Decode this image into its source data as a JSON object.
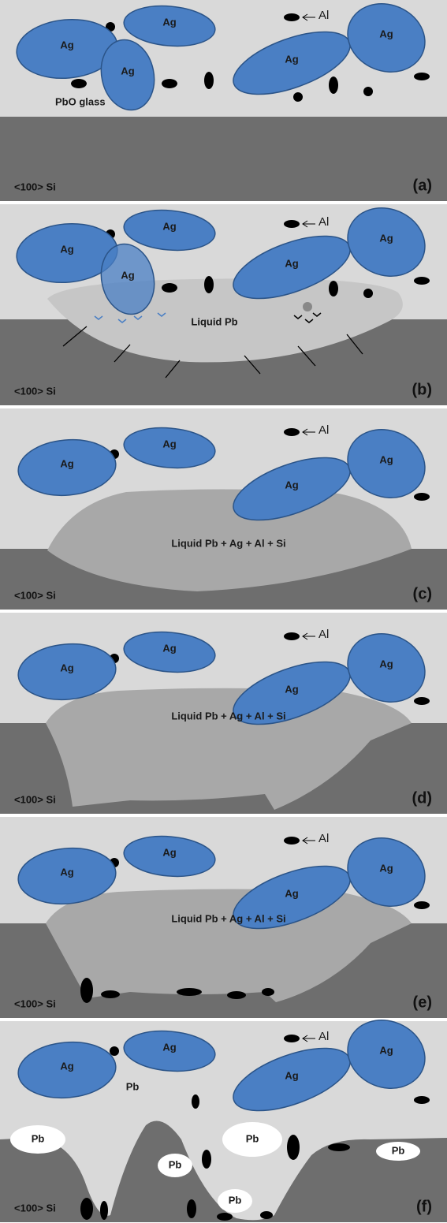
{
  "panels": [
    {
      "tag": "(a)",
      "substrate": "<100> Si",
      "aluminum": "Al",
      "particles": [
        "Ag",
        "Ag",
        "Ag",
        "Ag",
        "Ag"
      ],
      "regions": [
        "PbO glass"
      ]
    },
    {
      "tag": "(b)",
      "substrate": "<100> Si",
      "aluminum": "Al",
      "particles": [
        "Ag",
        "Ag",
        "Ag",
        "Ag",
        "Ag"
      ],
      "regions": [
        "Liquid Pb"
      ]
    },
    {
      "tag": "(c)",
      "substrate": "<100> Si",
      "aluminum": "Al",
      "particles": [
        "Ag",
        "Ag",
        "Ag",
        "Ag"
      ],
      "regions": [
        "Liquid Pb + Ag + Al + Si"
      ]
    },
    {
      "tag": "(d)",
      "substrate": "<100> Si",
      "aluminum": "Al",
      "particles": [
        "Ag",
        "Ag",
        "Ag",
        "Ag"
      ],
      "regions": [
        "Liquid Pb + Ag + Al + Si"
      ]
    },
    {
      "tag": "(e)",
      "substrate": "<100> Si",
      "aluminum": "Al",
      "particles": [
        "Ag",
        "Ag",
        "Ag",
        "Ag"
      ],
      "regions": [
        "Liquid Pb + Ag + Al + Si"
      ]
    },
    {
      "tag": "(f)",
      "substrate": "<100> Si",
      "aluminum": "Al",
      "particles": [
        "Ag",
        "Ag",
        "Ag",
        "Ag"
      ],
      "regions": [
        "Pb",
        "Pb",
        "Pb",
        "Pb",
        "Pb",
        "Pb"
      ]
    }
  ]
}
